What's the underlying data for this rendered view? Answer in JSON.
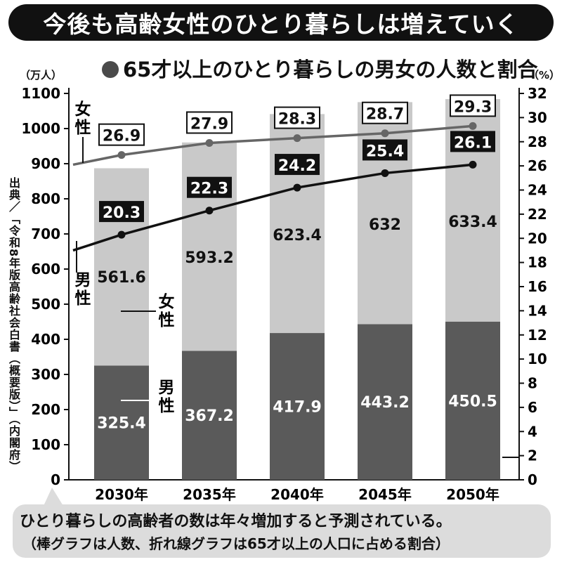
{
  "headline": "今後も高齢女性のひとり暮らしは増えていく",
  "colors": {
    "male_bar": "#5a5a5a",
    "female_bar": "#c9c9c9",
    "male_line": "#111111",
    "female_line": "#666666"
  },
  "source": "出典／「令和8年版高齢社会白書（概要版）」（内閣府）",
  "footer": {
    "line1": "ひとり暮らしの高齢者の数は年々増加すると予測されている。",
    "line2": "（棒グラフは人数、折れ線グラフは65才以上の人口に占める割合）"
  },
  "chart_data": {
    "type": "bar",
    "stacked": true,
    "title": "65才以上のひとり暮らしの男女の人数と割合",
    "y_left_unit": "（万人）",
    "y_right_unit": "（%）",
    "ylim_left": [
      0,
      1100
    ],
    "yticks_left": [
      0,
      100,
      200,
      300,
      400,
      500,
      600,
      700,
      800,
      900,
      1000,
      1100
    ],
    "ylim_right": [
      0,
      32
    ],
    "yticks_right": [
      0,
      2,
      4,
      6,
      8,
      10,
      12,
      14,
      16,
      18,
      20,
      22,
      24,
      26,
      28,
      30,
      32
    ],
    "categories": [
      "2030年",
      "2035年",
      "2040年",
      "2045年",
      "2050年"
    ],
    "series": [
      {
        "name": "男性",
        "kind": "bar",
        "values": [
          325.4,
          367.2,
          417.9,
          443.2,
          450.5
        ]
      },
      {
        "name": "女性",
        "kind": "bar",
        "values": [
          561.6,
          593.2,
          623.4,
          632,
          633.4
        ]
      },
      {
        "name": "女性",
        "kind": "line",
        "axis": "right",
        "values": [
          26.9,
          27.9,
          28.3,
          28.7,
          29.3
        ]
      },
      {
        "name": "男性",
        "kind": "line",
        "axis": "right",
        "values": [
          20.3,
          22.3,
          24.2,
          25.4,
          26.1
        ]
      }
    ],
    "bar_value_labels": {
      "male": [
        "325.4",
        "367.2",
        "417.9",
        "443.2",
        "450.5"
      ],
      "female": [
        "561.6",
        "593.2",
        "623.4",
        "632",
        "633.4"
      ]
    },
    "line_value_labels": {
      "female": [
        "26.9",
        "27.9",
        "28.3",
        "28.7",
        "29.3"
      ],
      "male": [
        "20.3",
        "22.3",
        "24.2",
        "25.4",
        "26.1"
      ]
    },
    "legend": {
      "female_line": "女性",
      "male_line": "男性",
      "female_bar": "女性",
      "male_bar": "男性"
    },
    "grid": false
  }
}
